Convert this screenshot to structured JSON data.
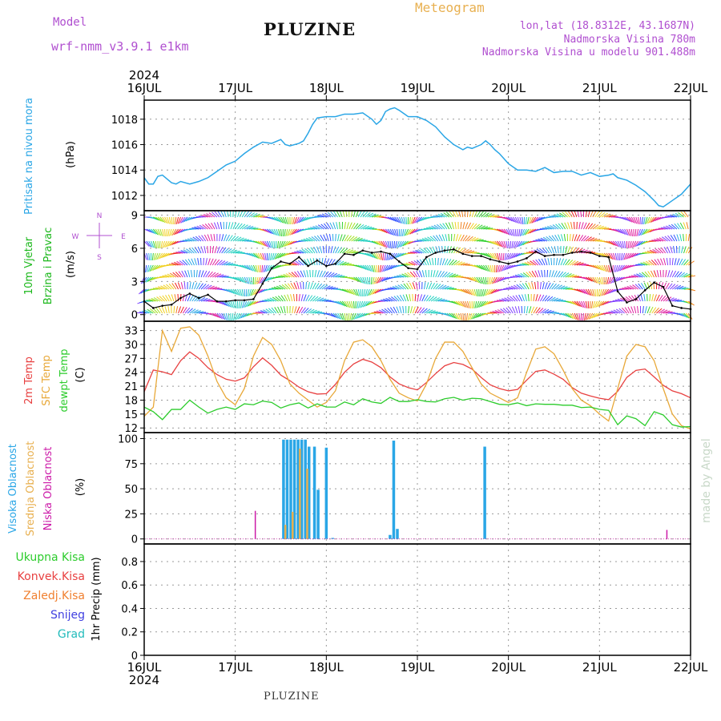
{
  "header": {
    "model_label": "Model",
    "model_name": "wrf-nmm_v3.9.1 e1km",
    "station": "PLUZINE",
    "product": "Meteogram",
    "lonlat": "lon,lat (18.8312E, 43.1687N)",
    "elevation": "Nadmorska Visina 780m",
    "model_elevation": "Nadmorska Visina u modelu 901.488m",
    "watermark": "made by Angel",
    "footer": "PLUZINE"
  },
  "colors": {
    "pressure": "#2aa6e6",
    "temp2m": "#e84040",
    "sfc": "#e8a838",
    "dewpt": "#2ccc2c",
    "high_cloud": "#2aa6e6",
    "mid_cloud": "#e8b050",
    "low_cloud": "#cc1aa8",
    "total_precip": "#2ccc2c",
    "conv_precip": "#e84040",
    "frozen": "#f08030",
    "snow": "#4040e0",
    "grad": "#22bbbb"
  },
  "chart_data": [
    {
      "type": "line",
      "title": "",
      "x_axis_top": {
        "year": "2024",
        "ticks": [
          "16JUL",
          "17JUL",
          "18JUL",
          "19JUL",
          "20JUL",
          "21JUL",
          "22JUL"
        ]
      },
      "x_axis_bottom": {
        "year": "2024",
        "ticks": [
          "16JUL",
          "17JUL",
          "18JUL",
          "19JUL",
          "20JUL",
          "21JUL",
          "22JUL"
        ]
      },
      "xlim_days": [
        16,
        22
      ],
      "ylabel": "Pritisak na nivou mora",
      "unit": "(hPa)",
      "ylim": [
        1010.8,
        1019.5
      ],
      "yticks": [
        "1012",
        "1014",
        "1016",
        "1018"
      ],
      "grid": true,
      "series": [
        {
          "name": "",
          "x": [
            16.0,
            16.05,
            16.1,
            16.15,
            16.2,
            16.25,
            16.3,
            16.35,
            16.4,
            16.5,
            16.6,
            16.7,
            16.8,
            16.9,
            17.0,
            17.1,
            17.2,
            17.3,
            17.4,
            17.5,
            17.55,
            17.6,
            17.7,
            17.75,
            17.8,
            17.85,
            17.9,
            18.0,
            18.1,
            18.2,
            18.3,
            18.4,
            18.5,
            18.55,
            18.6,
            18.65,
            18.7,
            18.75,
            18.8,
            18.9,
            19.0,
            19.1,
            19.2,
            19.3,
            19.4,
            19.5,
            19.55,
            19.6,
            19.7,
            19.75,
            19.8,
            19.85,
            19.9,
            20.0,
            20.1,
            20.2,
            20.3,
            20.4,
            20.5,
            20.6,
            20.7,
            20.8,
            20.9,
            21.0,
            21.1,
            21.15,
            21.2,
            21.3,
            21.4,
            21.5,
            21.6,
            21.65,
            21.7,
            21.8,
            21.9,
            22.0
          ],
          "y": [
            1013.4,
            1012.9,
            1012.9,
            1013.5,
            1013.6,
            1013.3,
            1013.0,
            1012.9,
            1013.1,
            1012.9,
            1013.1,
            1013.4,
            1013.9,
            1014.4,
            1014.7,
            1015.3,
            1015.8,
            1016.2,
            1016.1,
            1016.4,
            1016.0,
            1015.9,
            1016.1,
            1016.3,
            1016.9,
            1017.6,
            1018.1,
            1018.2,
            1018.2,
            1018.4,
            1018.4,
            1018.5,
            1018.0,
            1017.6,
            1017.9,
            1018.6,
            1018.8,
            1018.9,
            1018.7,
            1018.2,
            1018.2,
            1017.9,
            1017.4,
            1016.6,
            1016.0,
            1015.6,
            1015.8,
            1015.7,
            1016.0,
            1016.3,
            1016.0,
            1015.6,
            1015.3,
            1014.5,
            1014.0,
            1014.0,
            1013.9,
            1014.2,
            1013.8,
            1013.9,
            1013.9,
            1013.6,
            1013.8,
            1013.5,
            1013.6,
            1013.7,
            1013.4,
            1013.2,
            1012.8,
            1012.3,
            1011.6,
            1011.2,
            1011.1,
            1011.6,
            1012.1,
            1012.9
          ]
        }
      ]
    },
    {
      "type": "scatter",
      "title": "",
      "ylabel_line1": "10m Vjetar",
      "ylabel_line2": "Brzina i Pravac",
      "unit": "(m/s)",
      "compass": {
        "n": "N",
        "s": "S",
        "e": "E",
        "w": "W"
      },
      "ylim": [
        -0.6,
        9.4
      ],
      "yticks": [
        "0",
        "3",
        "6",
        "9"
      ],
      "series": [
        {
          "name": "",
          "x": [
            16.0,
            16.1,
            16.2,
            16.3,
            16.4,
            16.5,
            16.6,
            16.7,
            16.8,
            16.9,
            17.0,
            17.1,
            17.2,
            17.3,
            17.4,
            17.5,
            17.6,
            17.7,
            17.8,
            17.9,
            18.0,
            18.1,
            18.2,
            18.3,
            18.4,
            18.5,
            18.6,
            18.7,
            18.8,
            18.9,
            19.0,
            19.1,
            19.2,
            19.3,
            19.4,
            19.5,
            19.6,
            19.7,
            19.8,
            19.9,
            20.0,
            20.1,
            20.2,
            20.3,
            20.4,
            20.5,
            20.6,
            20.7,
            20.8,
            20.9,
            21.0,
            21.1,
            21.2,
            21.3,
            21.4,
            21.5,
            21.6,
            21.7,
            21.8,
            21.9,
            22.0
          ],
          "y": [
            1.2,
            0.6,
            0.8,
            0.9,
            1.5,
            1.9,
            1.5,
            1.8,
            1.2,
            1.2,
            1.3,
            1.3,
            1.4,
            2.8,
            4.2,
            4.8,
            4.6,
            5.2,
            4.4,
            4.9,
            4.4,
            4.6,
            5.5,
            5.4,
            5.8,
            5.6,
            5.7,
            5.5,
            4.8,
            4.2,
            4.1,
            5.2,
            5.6,
            5.8,
            5.9,
            5.5,
            5.3,
            5.3,
            5.0,
            4.8,
            4.6,
            4.8,
            5.1,
            5.7,
            5.3,
            5.4,
            5.4,
            5.6,
            5.7,
            5.6,
            5.3,
            5.2,
            2.1,
            1.1,
            1.4,
            2.2,
            2.9,
            2.5,
            0.8,
            0.6,
            0.5
          ]
        }
      ]
    },
    {
      "type": "line",
      "title": "",
      "ylabel_line1": "2m Temp",
      "ylabel_line2": "SFC Temp",
      "ylabel_line3": "dewpt Temp",
      "unit": "(C)",
      "ylim": [
        11,
        35
      ],
      "yticks": [
        "12",
        "15",
        "18",
        "21",
        "24",
        "27",
        "30",
        "33"
      ],
      "x": [
        16.0,
        16.1,
        16.2,
        16.3,
        16.4,
        16.5,
        16.6,
        16.7,
        16.8,
        16.9,
        17.0,
        17.1,
        17.2,
        17.3,
        17.4,
        17.5,
        17.6,
        17.7,
        17.8,
        17.9,
        18.0,
        18.1,
        18.2,
        18.3,
        18.4,
        18.5,
        18.6,
        18.7,
        18.8,
        18.9,
        19.0,
        19.1,
        19.2,
        19.3,
        19.4,
        19.5,
        19.6,
        19.7,
        19.8,
        19.9,
        20.0,
        20.1,
        20.2,
        20.3,
        20.4,
        20.5,
        20.6,
        20.7,
        20.8,
        20.9,
        21.0,
        21.1,
        21.2,
        21.3,
        21.4,
        21.5,
        21.6,
        21.7,
        21.8,
        21.9,
        22.0
      ],
      "series": [
        {
          "name": "2m Temp",
          "y": [
            19.8,
            24.5,
            24.1,
            23.5,
            26.5,
            28.4,
            27.0,
            25.0,
            23.5,
            22.5,
            22.1,
            22.8,
            25.2,
            27.1,
            25.5,
            23.4,
            22.2,
            20.8,
            19.8,
            19.3,
            19.4,
            21.4,
            24.0,
            25.8,
            26.8,
            26.2,
            25.0,
            23.0,
            21.5,
            20.7,
            20.2,
            21.8,
            23.7,
            25.4,
            26.1,
            25.7,
            24.7,
            22.9,
            21.3,
            20.5,
            20.0,
            20.3,
            22.3,
            24.2,
            24.5,
            23.6,
            22.5,
            20.7,
            19.5,
            18.9,
            18.4,
            18.1,
            19.9,
            22.9,
            24.4,
            24.7,
            23.0,
            21.2,
            20.0,
            19.4,
            18.5
          ]
        },
        {
          "name": "SFC Temp",
          "y": [
            14.5,
            16.5,
            33.0,
            28.5,
            33.5,
            33.8,
            32.0,
            27.5,
            22.0,
            18.5,
            17.0,
            20.5,
            27.5,
            31.5,
            30.0,
            26.5,
            21.5,
            19.5,
            18.0,
            16.5,
            17.5,
            20.0,
            26.5,
            30.5,
            31.0,
            29.5,
            26.5,
            22.5,
            19.5,
            18.5,
            17.8,
            21.5,
            27.0,
            30.5,
            30.5,
            28.5,
            25.0,
            21.5,
            19.5,
            18.5,
            17.5,
            18.5,
            24.0,
            29.0,
            29.5,
            28.0,
            24.5,
            20.5,
            18.0,
            16.8,
            15.0,
            13.5,
            20.5,
            27.5,
            30.0,
            29.5,
            26.5,
            20.5,
            15.0,
            12.5,
            11.8
          ]
        },
        {
          "name": "dewpt Temp",
          "y": [
            16.5,
            15.5,
            13.8,
            16.0,
            16.0,
            18.0,
            16.5,
            15.2,
            16.0,
            16.5,
            16.0,
            17.2,
            17.0,
            17.8,
            17.5,
            16.3,
            17.0,
            17.4,
            16.3,
            17.2,
            16.5,
            16.5,
            17.6,
            17.0,
            18.3,
            17.6,
            17.3,
            18.6,
            17.7,
            17.7,
            18.1,
            17.7,
            17.6,
            18.3,
            18.6,
            18.0,
            18.4,
            18.3,
            17.7,
            17.1,
            17.0,
            17.4,
            16.8,
            17.2,
            17.1,
            17.1,
            16.9,
            16.9,
            16.4,
            16.5,
            16.0,
            15.8,
            12.7,
            14.6,
            14.0,
            12.5,
            15.5,
            14.8,
            12.7,
            12.2,
            12.3
          ]
        }
      ]
    },
    {
      "type": "bar",
      "title": "",
      "ylabel_line1": "Visoka Oblacnost",
      "ylabel_line2": "Srednja Oblacnost",
      "ylabel_line3": "Niska Oblacnost",
      "unit": "(%)",
      "ylim": [
        -5,
        106
      ],
      "yticks": [
        "0",
        "25",
        "50",
        "75",
        "100"
      ],
      "series": [
        {
          "name": "Visoka Oblacnost",
          "x": [
            17.53,
            17.57,
            17.61,
            17.65,
            17.69,
            17.73,
            17.77,
            17.81,
            17.87,
            17.91,
            18.0,
            18.07,
            18.7,
            18.74,
            18.78,
            19.74
          ],
          "y": [
            99,
            99,
            99,
            99,
            99,
            99,
            99,
            92,
            92,
            49,
            91,
            1,
            4,
            98,
            10,
            92
          ]
        },
        {
          "name": "Srednja Oblacnost",
          "x": [
            17.55,
            17.63,
            17.71,
            17.79
          ],
          "y": [
            14,
            27,
            90,
            70
          ]
        },
        {
          "name": "Niska Oblacnost",
          "x": [
            17.22,
            21.74
          ],
          "y": [
            28,
            9
          ]
        }
      ]
    },
    {
      "type": "bar",
      "title": "",
      "legend": [
        "Ukupna Kisa",
        "Konvek.Kisa",
        "Zaledj.Kisa",
        "Snijeg",
        "Grad"
      ],
      "ylabel": "1hr Precip (mm)",
      "ylim": [
        0,
        0.95
      ],
      "yticks": [
        "0",
        "0.2",
        "0.4",
        "0.6",
        "0.8"
      ],
      "series": [
        {
          "name": "Ukupna Kisa",
          "values": []
        }
      ]
    }
  ]
}
